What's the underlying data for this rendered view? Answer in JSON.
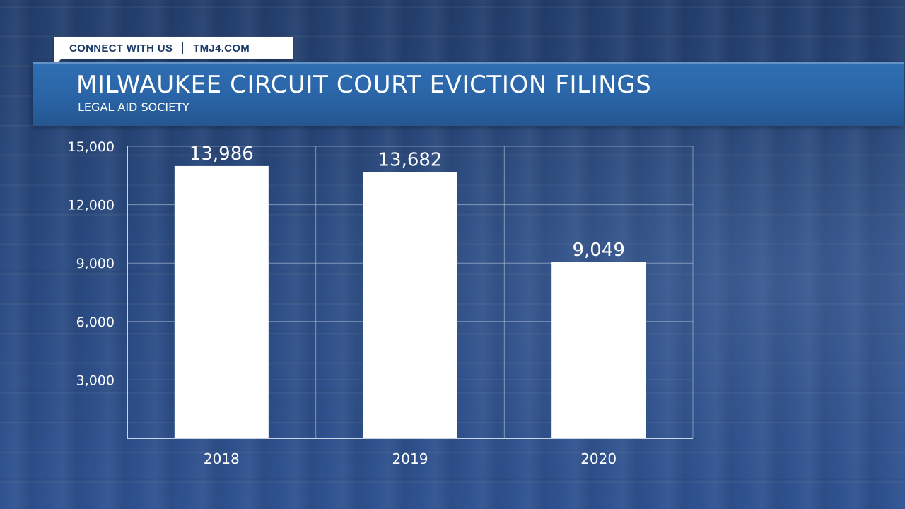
{
  "banner": {
    "connect_label": "CONNECT WITH US",
    "site_label": "TMJ4.COM"
  },
  "colors": {
    "banner_text": "#1b3a66",
    "title_bar": "#2a64a6",
    "bar_fill": "#ffffff",
    "grid": "#b8c6dc"
  },
  "chart_data": {
    "type": "bar",
    "title": "MILWAUKEE CIRCUIT COURT EVICTION FILINGS",
    "subtitle": "LEGAL AID SOCIETY",
    "categories": [
      "2018",
      "2019",
      "2020"
    ],
    "values": [
      13986,
      13682,
      9049
    ],
    "value_labels": [
      "13,986",
      "13,682",
      "9,049"
    ],
    "yticks": [
      3000,
      6000,
      9000,
      12000,
      15000
    ],
    "ytick_labels": [
      "3,000",
      "6,000",
      "9,000",
      "12,000",
      "15,000"
    ],
    "ylim": [
      0,
      15000
    ],
    "grid": true,
    "legend": "none"
  }
}
